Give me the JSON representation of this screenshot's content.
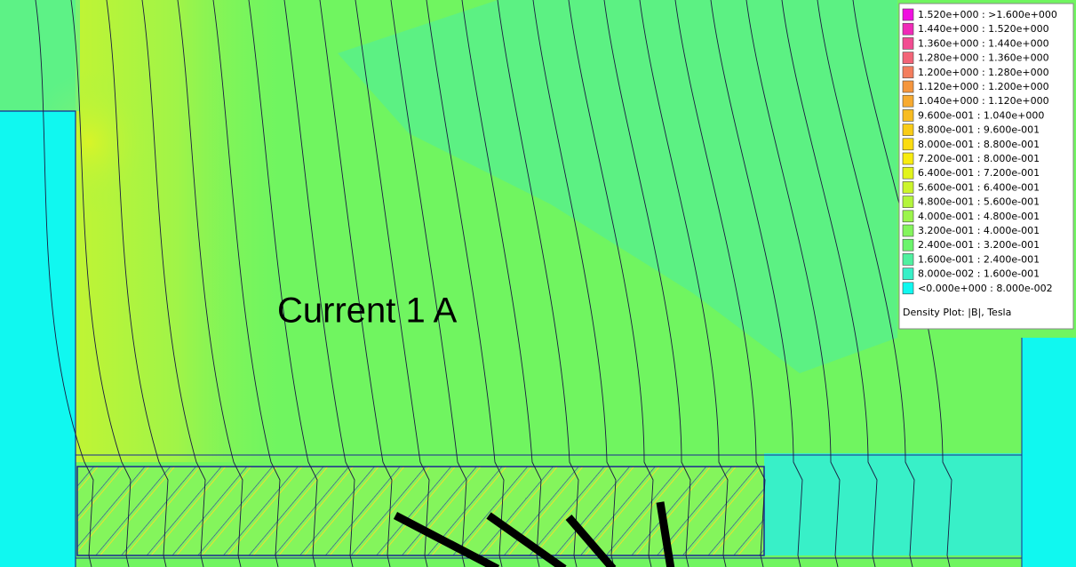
{
  "annotation": "Current 1 A",
  "legend": {
    "entries": [
      {
        "label": "1.520e+000 : >1.600e+000",
        "color": "#f010e0"
      },
      {
        "label": "1.440e+000 : 1.520e+000",
        "color": "#f02ab8"
      },
      {
        "label": "1.360e+000 : 1.440e+000",
        "color": "#f24c92"
      },
      {
        "label": "1.280e+000 : 1.360e+000",
        "color": "#f36478"
      },
      {
        "label": "1.200e+000 : 1.280e+000",
        "color": "#f47e5e"
      },
      {
        "label": "1.120e+000 : 1.200e+000",
        "color": "#f5963e"
      },
      {
        "label": "1.040e+000 : 1.120e+000",
        "color": "#f7aa30"
      },
      {
        "label": "9.600e-001 : 1.040e+000",
        "color": "#f8bc22"
      },
      {
        "label": "8.800e-001 : 9.600e-001",
        "color": "#f9cc18"
      },
      {
        "label": "8.000e-001 : 8.800e-001",
        "color": "#fbdc10"
      },
      {
        "label": "7.200e-001 : 8.000e-001",
        "color": "#f8ec10"
      },
      {
        "label": "6.400e-001 : 7.200e-001",
        "color": "#e2f41c"
      },
      {
        "label": "5.600e-001 : 6.400e-001",
        "color": "#ccf52c"
      },
      {
        "label": "4.800e-001 : 5.600e-001",
        "color": "#b4f53c"
      },
      {
        "label": "4.000e-001 : 4.800e-001",
        "color": "#9cf54c"
      },
      {
        "label": "3.200e-001 : 4.000e-001",
        "color": "#84f55c"
      },
      {
        "label": "2.400e-001 : 3.200e-001",
        "color": "#6cf56c"
      },
      {
        "label": "1.600e-001 : 2.400e-001",
        "color": "#50f0a0"
      },
      {
        "label": "8.000e-002 : 1.600e-001",
        "color": "#38f0c8"
      },
      {
        "label": "<0.000e+000 : 8.000e-002",
        "color": "#10f8f0"
      }
    ],
    "caption": "Density Plot: |B|, Tesla"
  }
}
